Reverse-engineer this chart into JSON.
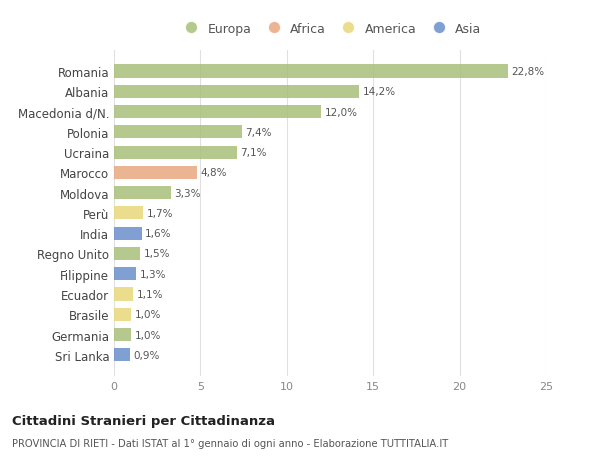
{
  "countries": [
    "Romania",
    "Albania",
    "Macedonia d/N.",
    "Polonia",
    "Ucraina",
    "Marocco",
    "Moldova",
    "Perù",
    "India",
    "Regno Unito",
    "Filippine",
    "Ecuador",
    "Brasile",
    "Germania",
    "Sri Lanka"
  ],
  "values": [
    22.8,
    14.2,
    12.0,
    7.4,
    7.1,
    4.8,
    3.3,
    1.7,
    1.6,
    1.5,
    1.3,
    1.1,
    1.0,
    1.0,
    0.9
  ],
  "labels": [
    "22,8%",
    "14,2%",
    "12,0%",
    "7,4%",
    "7,1%",
    "4,8%",
    "3,3%",
    "1,7%",
    "1,6%",
    "1,5%",
    "1,3%",
    "1,1%",
    "1,0%",
    "1,0%",
    "0,9%"
  ],
  "continents": [
    "Europa",
    "Europa",
    "Europa",
    "Europa",
    "Europa",
    "Africa",
    "Europa",
    "America",
    "Asia",
    "Europa",
    "Asia",
    "America",
    "America",
    "Europa",
    "Asia"
  ],
  "continent_colors": {
    "Europa": "#a8c07a",
    "Africa": "#e8a882",
    "America": "#e8d87a",
    "Asia": "#6a8fcc"
  },
  "legend_order": [
    "Europa",
    "Africa",
    "America",
    "Asia"
  ],
  "title": "Cittadini Stranieri per Cittadinanza",
  "subtitle": "PROVINCIA DI RIETI - Dati ISTAT al 1° gennaio di ogni anno - Elaborazione TUTTITALIA.IT",
  "xlim": [
    0,
    25
  ],
  "xticks": [
    0,
    5,
    10,
    15,
    20,
    25
  ],
  "bg_color": "#ffffff",
  "grid_color": "#e0e0e0"
}
